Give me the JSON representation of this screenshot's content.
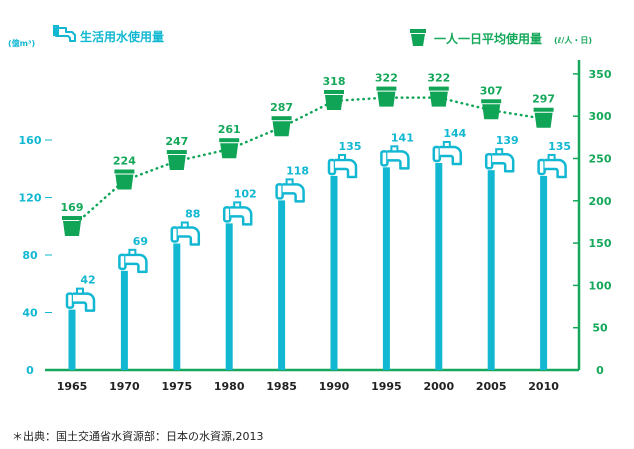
{
  "chart_data": {
    "type": "bar+line",
    "categories": [
      "1965",
      "1970",
      "1975",
      "1980",
      "1985",
      "1990",
      "1995",
      "2000",
      "2005",
      "2010"
    ],
    "series": [
      {
        "name": "生活用水使用量",
        "kind": "bar",
        "axis": "left",
        "values": [
          42,
          69,
          88,
          102,
          118,
          135,
          141,
          144,
          139,
          135
        ]
      },
      {
        "name": "一人一日平均使用量",
        "kind": "line",
        "axis": "right",
        "values": [
          169,
          224,
          247,
          261,
          287,
          318,
          322,
          322,
          307,
          297
        ]
      }
    ],
    "left_axis": {
      "unit": "(億m³)",
      "ticks": [
        0,
        40,
        80,
        120,
        160
      ],
      "ylim": [
        0,
        200
      ]
    },
    "right_axis": {
      "unit": "(ℓ/人・日)",
      "ticks": [
        0,
        50,
        100,
        150,
        200,
        250,
        300,
        350
      ],
      "ylim": [
        0,
        350
      ]
    },
    "legend_left": "生活用水使用量",
    "legend_right": "一人一日平均使用量",
    "source": "＊出典：国土交通省水資源部：日本の水資源,2013"
  },
  "colors": {
    "bar": "#12b8d2",
    "line": "#0fa456",
    "axis": "#15a85a",
    "left_text": "#12b8d2",
    "right_text": "#15a85a"
  }
}
